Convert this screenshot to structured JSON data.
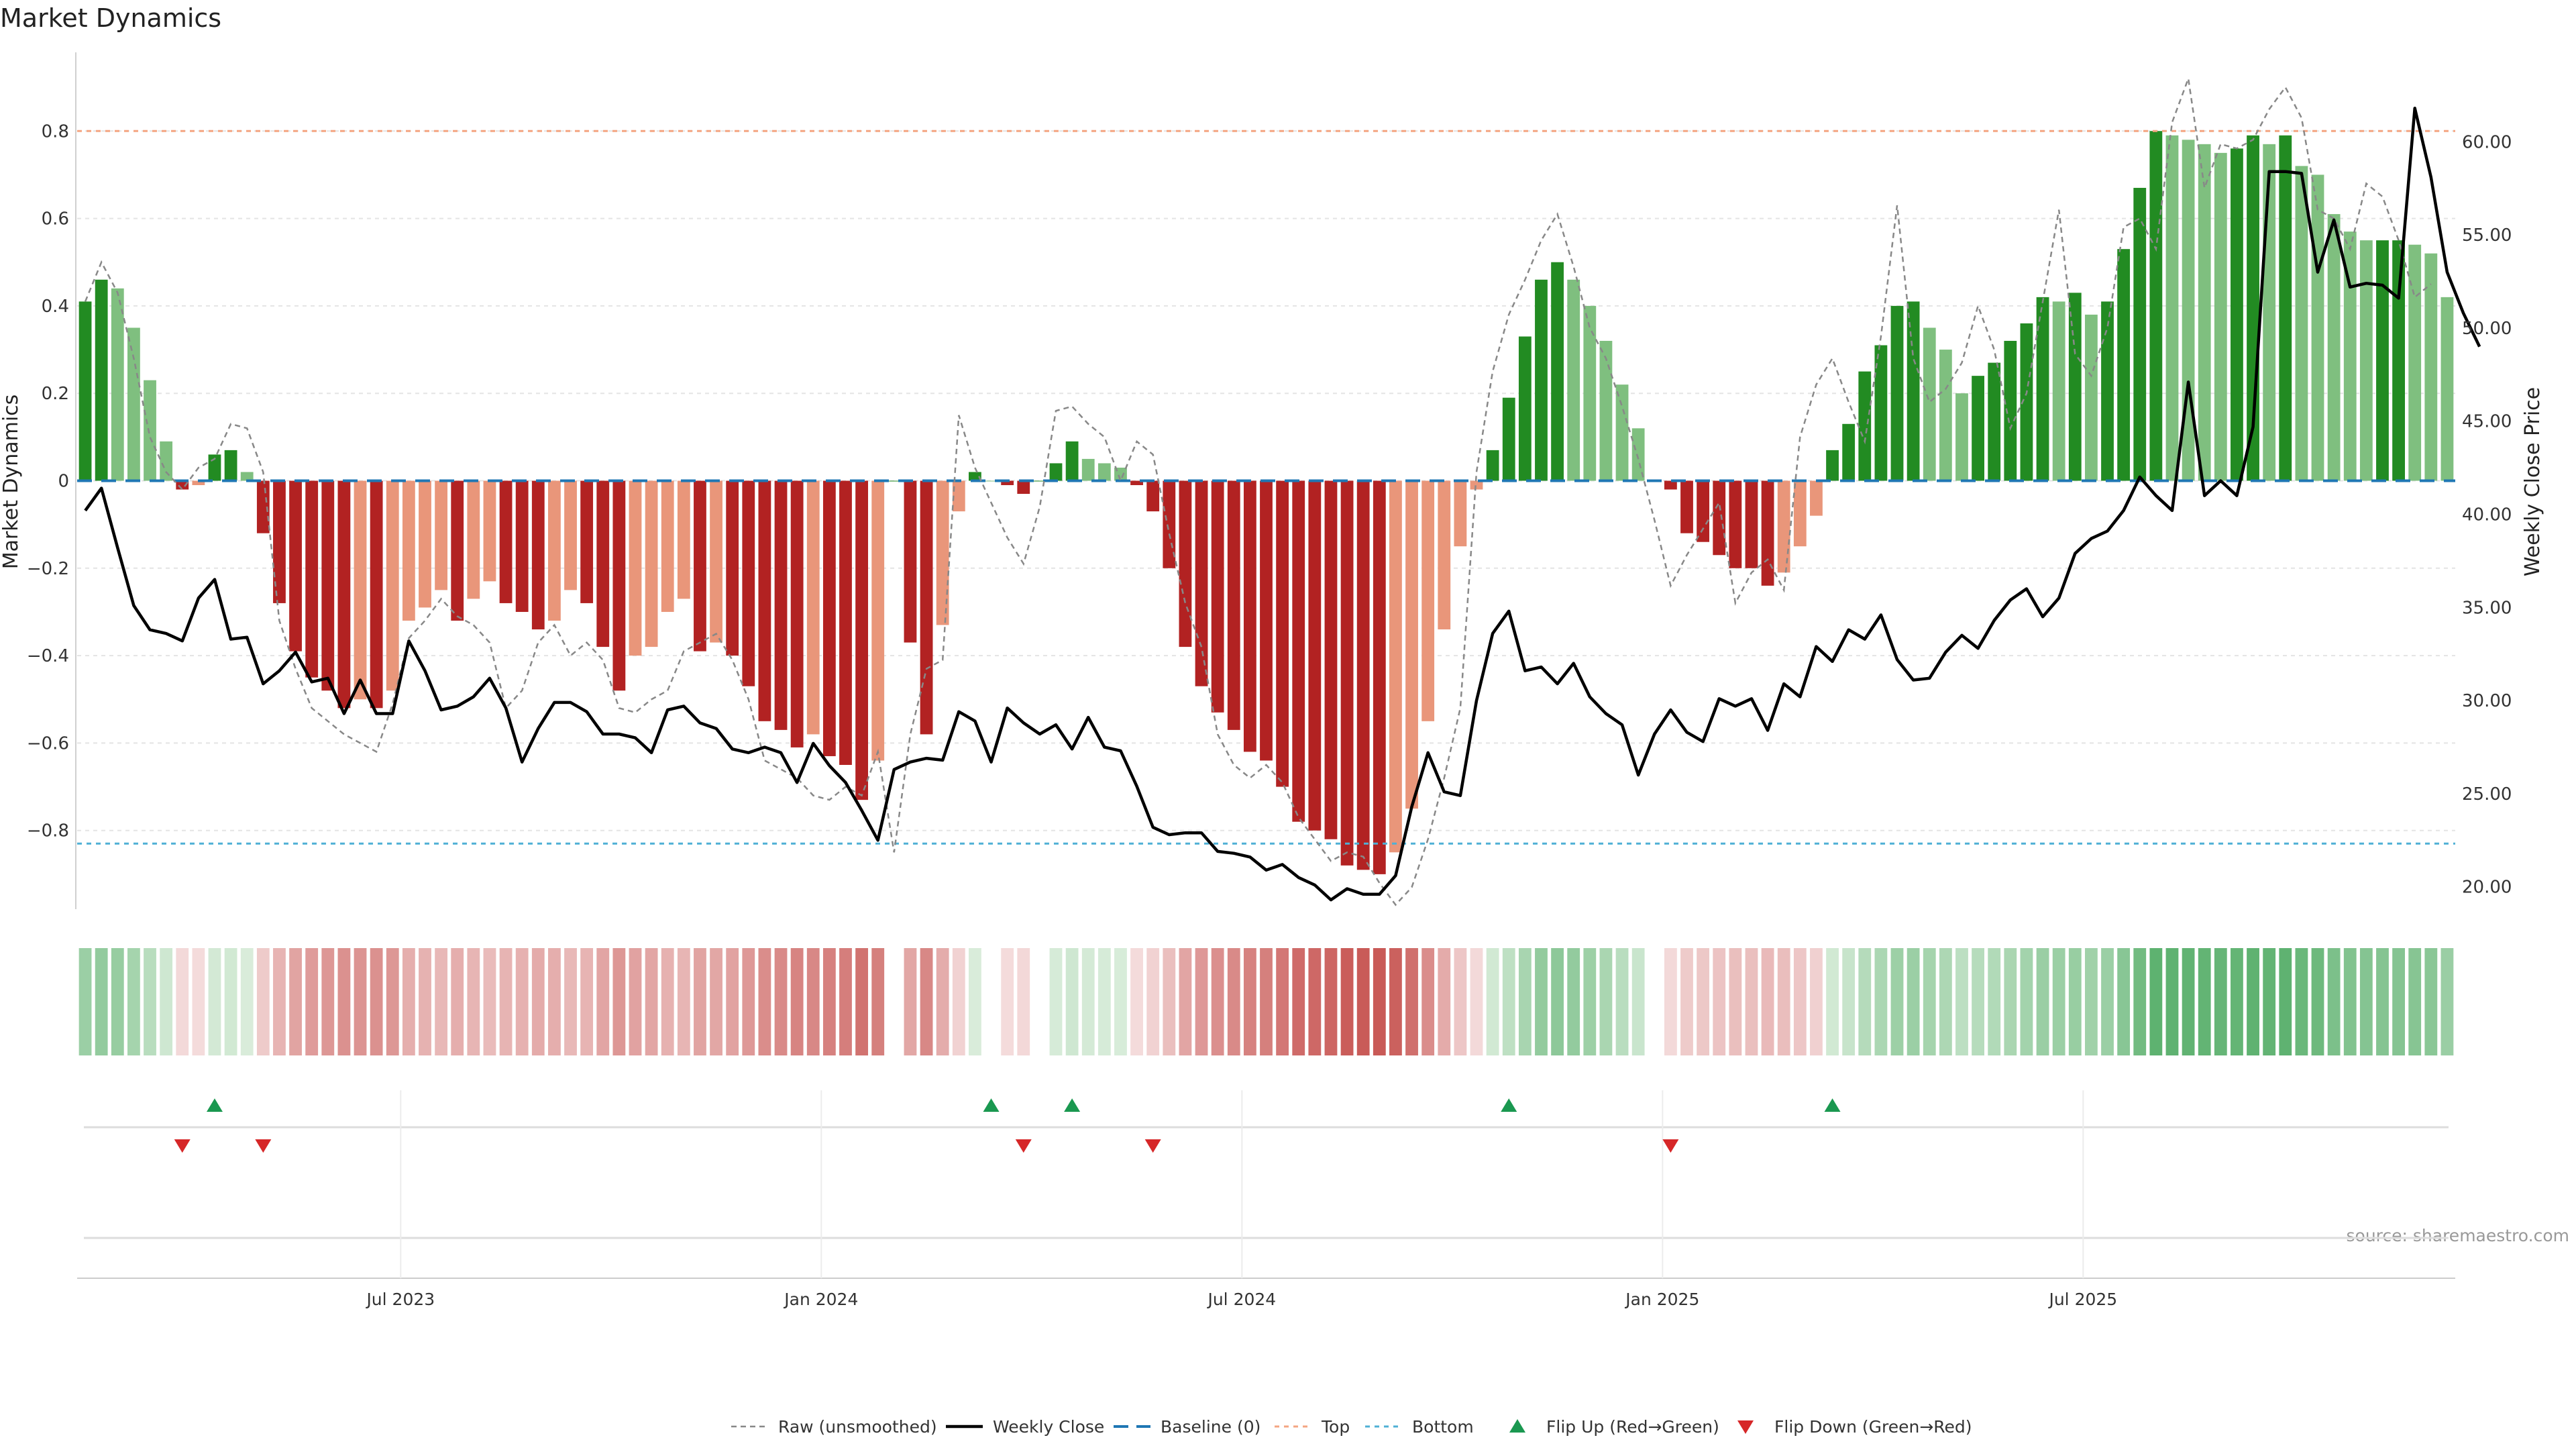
{
  "chart_data": {
    "type": "bar",
    "title": "Market Dynamics",
    "ylabel_left": "Market Dynamics",
    "ylabel_right": "Weekly Close Price",
    "source": "source: sharemaestro.com",
    "ylim_left": [
      -0.98,
      0.98
    ],
    "ylim_right": [
      18.8,
      64.8
    ],
    "yticks_left": [
      0.8,
      0.6,
      0.4,
      0.2,
      0,
      -0.2,
      -0.4,
      -0.6,
      -0.8
    ],
    "ytick_labels_left": [
      "0.8",
      "0.6",
      "0.4",
      "0.2",
      "0",
      "−0.2",
      "−0.4",
      "−0.6",
      "−0.8"
    ],
    "yticks_right": [
      60,
      55,
      50,
      45,
      40,
      35,
      30,
      25,
      20
    ],
    "ytick_labels_right": [
      "60.00",
      "55.00",
      "50.00",
      "45.00",
      "40.00",
      "35.00",
      "30.00",
      "25.00",
      "20.00"
    ],
    "xtick_labels": [
      "Jul 2023",
      "Jan 2024",
      "Jul 2024",
      "Jan 2025",
      "Jul 2025"
    ],
    "xtick_week_index": [
      20,
      46,
      72,
      98,
      124
    ],
    "top_threshold": 0.8,
    "bottom_threshold": -0.83,
    "baseline": 0,
    "smoothed": [
      0.41,
      0.46,
      0.44,
      0.35,
      0.23,
      0.09,
      -0.02,
      -0.01,
      0.06,
      0.07,
      0.02,
      -0.12,
      -0.28,
      -0.39,
      -0.45,
      -0.48,
      -0.52,
      -0.5,
      -0.52,
      -0.48,
      -0.32,
      -0.29,
      -0.25,
      -0.32,
      -0.27,
      -0.23,
      -0.28,
      -0.3,
      -0.34,
      -0.32,
      -0.25,
      -0.28,
      -0.38,
      -0.48,
      -0.4,
      -0.38,
      -0.3,
      -0.27,
      -0.39,
      -0.37,
      -0.4,
      -0.47,
      -0.55,
      -0.57,
      -0.61,
      -0.58,
      -0.63,
      -0.65,
      -0.73,
      -0.64,
      0,
      -0.37,
      -0.58,
      -0.33,
      -0.07,
      0.02,
      0,
      -0.01,
      -0.03,
      0,
      0.04,
      0.09,
      0.05,
      0.04,
      0.03,
      -0.01,
      -0.07,
      -0.2,
      -0.38,
      -0.47,
      -0.53,
      -0.57,
      -0.62,
      -0.64,
      -0.7,
      -0.78,
      -0.8,
      -0.82,
      -0.88,
      -0.89,
      -0.9,
      -0.85,
      -0.75,
      -0.55,
      -0.34,
      -0.15,
      -0.02,
      0.07,
      0.19,
      0.33,
      0.46,
      0.5,
      0.46,
      0.4,
      0.32,
      0.22,
      0.12,
      0,
      -0.02,
      -0.12,
      -0.14,
      -0.17,
      -0.2,
      -0.2,
      -0.24,
      -0.21,
      -0.15,
      -0.08,
      0.07,
      0.13,
      0.25,
      0.31,
      0.4,
      0.41,
      0.35,
      0.3,
      0.2,
      0.24,
      0.27,
      0.32,
      0.36,
      0.42,
      0.41,
      0.43,
      0.38,
      0.41,
      0.53,
      0.67,
      0.8,
      0.79,
      0.78,
      0.77,
      0.75,
      0.76,
      0.79,
      0.77,
      0.79,
      0.72,
      0.7,
      0.61,
      0.57,
      0.55,
      0.55,
      0.55,
      0.54,
      0.52,
      0.42
    ],
    "raw": [
      0.41,
      0.5,
      0.43,
      0.28,
      0.1,
      0.02,
      -0.02,
      0.03,
      0.05,
      0.13,
      0.12,
      0.02,
      -0.32,
      -0.43,
      -0.52,
      -0.55,
      -0.58,
      -0.6,
      -0.62,
      -0.51,
      -0.36,
      -0.32,
      -0.27,
      -0.31,
      -0.33,
      -0.37,
      -0.52,
      -0.48,
      -0.37,
      -0.33,
      -0.4,
      -0.37,
      -0.41,
      -0.52,
      -0.53,
      -0.5,
      -0.48,
      -0.39,
      -0.37,
      -0.35,
      -0.41,
      -0.5,
      -0.64,
      -0.66,
      -0.68,
      -0.72,
      -0.73,
      -0.7,
      -0.72,
      -0.62,
      -0.85,
      -0.58,
      -0.43,
      -0.41,
      0.15,
      0.03,
      -0.05,
      -0.13,
      -0.19,
      -0.06,
      0.16,
      0.17,
      0.13,
      0.1,
      0,
      0.09,
      0.06,
      -0.12,
      -0.28,
      -0.38,
      -0.58,
      -0.65,
      -0.68,
      -0.65,
      -0.69,
      -0.77,
      -0.82,
      -0.87,
      -0.85,
      -0.86,
      -0.92,
      -0.97,
      -0.93,
      -0.82,
      -0.68,
      -0.52,
      0.02,
      0.25,
      0.38,
      0.46,
      0.55,
      0.61,
      0.49,
      0.35,
      0.28,
      0.17,
      0.05,
      -0.09,
      -0.24,
      -0.17,
      -0.11,
      -0.05,
      -0.28,
      -0.21,
      -0.18,
      -0.25,
      0.1,
      0.22,
      0.28,
      0.18,
      0.09,
      0.33,
      0.63,
      0.28,
      0.18,
      0.21,
      0.27,
      0.4,
      0.3,
      0.12,
      0.2,
      0.41,
      0.62,
      0.29,
      0.24,
      0.35,
      0.58,
      0.6,
      0.53,
      0.82,
      0.92,
      0.67,
      0.77,
      0.76,
      0.78,
      0.85,
      0.9,
      0.83,
      0.62,
      0.6,
      0.53,
      0.68,
      0.65,
      0.55,
      0.42,
      0.45
    ],
    "close": [
      40.2,
      41.4,
      38.2,
      35.1,
      33.8,
      33.6,
      33.2,
      35.5,
      36.5,
      33.3,
      33.4,
      30.9,
      31.6,
      32.6,
      31.0,
      31.2,
      29.3,
      31.1,
      29.3,
      29.3,
      33.2,
      31.6,
      29.5,
      29.7,
      30.2,
      31.2,
      29.6,
      26.7,
      28.5,
      29.9,
      29.9,
      29.4,
      28.2,
      28.2,
      28.0,
      27.2,
      29.5,
      29.7,
      28.8,
      28.5,
      27.4,
      27.2,
      27.5,
      27.2,
      25.6,
      27.7,
      26.5,
      25.6,
      24.1,
      22.5,
      26.3,
      26.7,
      26.9,
      26.8,
      29.4,
      28.9,
      26.7,
      29.6,
      28.8,
      28.2,
      28.7,
      27.4,
      29.1,
      27.5,
      27.3,
      25.4,
      23.2,
      22.8,
      22.9,
      22.9,
      21.9,
      21.8,
      21.6,
      20.9,
      21.2,
      20.5,
      20.1,
      19.3,
      19.9,
      19.6,
      19.6,
      20.6,
      24.3,
      27.2,
      25.1,
      24.9,
      30.0,
      33.6,
      34.8,
      31.6,
      31.8,
      30.9,
      32.0,
      30.2,
      29.3,
      28.7,
      26.0,
      28.2,
      29.5,
      28.3,
      27.8,
      30.1,
      29.7,
      30.1,
      28.4,
      30.9,
      30.2,
      32.9,
      32.1,
      33.8,
      33.3,
      34.6,
      32.2,
      31.1,
      31.2,
      32.6,
      33.5,
      32.8,
      34.3,
      35.4,
      36.0,
      34.5,
      35.5,
      37.9,
      38.7,
      39.1,
      40.2,
      42.0,
      41.0,
      40.2,
      47.1,
      41.0,
      41.8,
      41.0,
      44.7,
      58.4,
      58.4,
      58.3,
      53.0,
      55.8,
      52.2,
      52.4,
      52.3,
      51.6,
      61.8,
      58.1,
      53.0,
      50.8,
      49.0
    ],
    "flip_up_index": [
      8,
      56,
      61,
      88,
      108
    ],
    "flip_down_index": [
      6,
      11,
      58,
      66,
      98
    ],
    "colors": {
      "strong_green": "#228B22",
      "light_green": "#7FBF7F",
      "strong_red": "#B22222",
      "light_red": "#E9967A",
      "raw_line": "#888888",
      "close_line": "#000000",
      "baseline": "#1F77B4",
      "top": "#F4A582",
      "bottom": "#4FB0D5",
      "flip_up": "#1A9850",
      "flip_down": "#D62728"
    },
    "legend": [
      "Raw (unsmoothed)",
      "Weekly Close",
      "Baseline (0)",
      "Top",
      "Bottom",
      "Flip Up (Red→Green)",
      "Flip Down (Green→Red)"
    ],
    "legend_position": "bottom-center"
  }
}
